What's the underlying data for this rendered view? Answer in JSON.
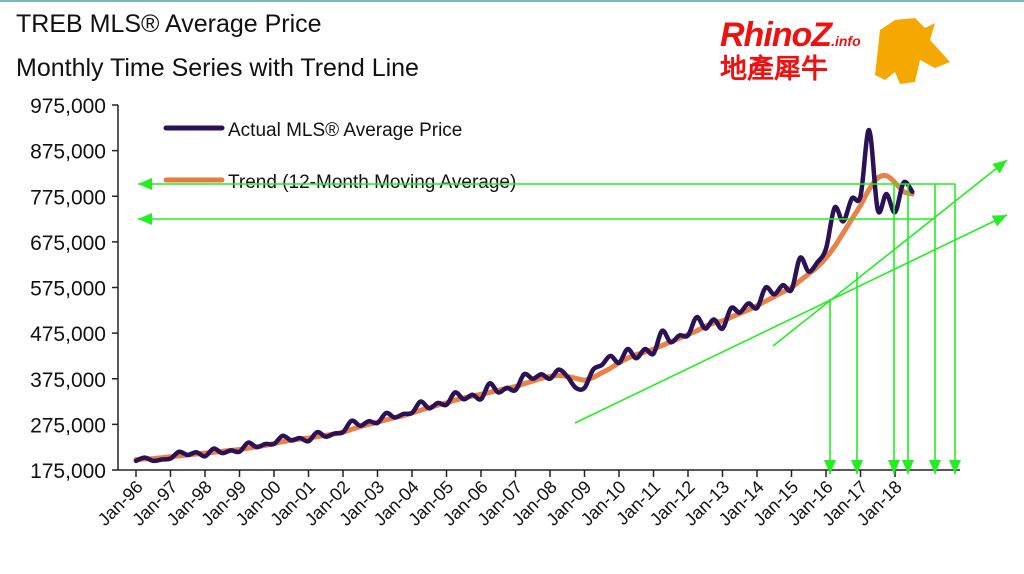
{
  "chart_data": {
    "type": "line",
    "title": "TREB MLS® Average Price",
    "subtitle": "Monthly  Time Series with Trend Line",
    "xlabel": "",
    "ylabel": "",
    "ylim": [
      175000,
      975000
    ],
    "yticks": [
      "975,000",
      "875,000",
      "775,000",
      "675,000",
      "575,000",
      "475,000",
      "375,000",
      "275,000",
      "175,000"
    ],
    "ytick_values": [
      975000,
      875000,
      775000,
      675000,
      575000,
      475000,
      375000,
      275000,
      175000
    ],
    "xticks": [
      "Jan-96",
      "Jan-97",
      "Jan-98",
      "Jan-99",
      "Jan-00",
      "Jan-01",
      "Jan-02",
      "Jan-03",
      "Jan-04",
      "Jan-05",
      "Jan-06",
      "Jan-07",
      "Jan-08",
      "Jan-09",
      "Jan-10",
      "Jan-11",
      "Jan-12",
      "Jan-13",
      "Jan-14",
      "Jan-15",
      "Jan-16",
      "Jan-17",
      "Jan-18"
    ],
    "grid": false,
    "legend_position": "top-left",
    "series": [
      {
        "name": "Actual MLS® Average Price",
        "color": "#2b1155",
        "x": [
          "1996-01",
          "1996-04",
          "1996-07",
          "1996-10",
          "1997-01",
          "1997-04",
          "1997-07",
          "1997-10",
          "1998-01",
          "1998-04",
          "1998-07",
          "1998-10",
          "1999-01",
          "1999-04",
          "1999-07",
          "1999-10",
          "2000-01",
          "2000-04",
          "2000-07",
          "2000-10",
          "2001-01",
          "2001-04",
          "2001-07",
          "2001-10",
          "2002-01",
          "2002-04",
          "2002-07",
          "2002-10",
          "2003-01",
          "2003-04",
          "2003-07",
          "2003-10",
          "2004-01",
          "2004-04",
          "2004-07",
          "2004-10",
          "2005-01",
          "2005-04",
          "2005-07",
          "2005-10",
          "2006-01",
          "2006-04",
          "2006-07",
          "2006-10",
          "2007-01",
          "2007-04",
          "2007-07",
          "2007-10",
          "2008-01",
          "2008-04",
          "2008-07",
          "2008-10",
          "2009-01",
          "2009-04",
          "2009-07",
          "2009-10",
          "2010-01",
          "2010-04",
          "2010-07",
          "2010-10",
          "2011-01",
          "2011-04",
          "2011-07",
          "2011-10",
          "2012-01",
          "2012-04",
          "2012-07",
          "2012-10",
          "2013-01",
          "2013-04",
          "2013-07",
          "2013-10",
          "2014-01",
          "2014-04",
          "2014-07",
          "2014-10",
          "2015-01",
          "2015-04",
          "2015-07",
          "2015-10",
          "2016-01",
          "2016-04",
          "2016-07",
          "2016-10",
          "2017-01",
          "2017-04",
          "2017-07",
          "2017-10",
          "2018-01",
          "2018-04",
          "2018-07"
        ],
        "values": [
          195000,
          202000,
          195000,
          198000,
          200000,
          215000,
          208000,
          214000,
          205000,
          222000,
          212000,
          218000,
          215000,
          235000,
          225000,
          232000,
          232000,
          250000,
          240000,
          245000,
          238000,
          258000,
          248000,
          255000,
          258000,
          283000,
          272000,
          282000,
          278000,
          300000,
          290000,
          298000,
          300000,
          325000,
          310000,
          322000,
          318000,
          345000,
          330000,
          340000,
          330000,
          365000,
          345000,
          355000,
          350000,
          385000,
          375000,
          385000,
          375000,
          395000,
          380000,
          355000,
          355000,
          395000,
          405000,
          425000,
          410000,
          440000,
          420000,
          440000,
          430000,
          480000,
          455000,
          470000,
          470000,
          510000,
          485000,
          505000,
          485000,
          530000,
          520000,
          540000,
          530000,
          575000,
          560000,
          580000,
          570000,
          640000,
          610000,
          630000,
          660000,
          750000,
          720000,
          770000,
          775000,
          920000,
          745000,
          780000,
          740000,
          805000,
          785000
        ]
      },
      {
        "name": "Trend (12-Month Moving Average)",
        "color": "#e87a3e",
        "x": [
          "1996-01",
          "1996-04",
          "1996-07",
          "1996-10",
          "1997-01",
          "1997-04",
          "1997-07",
          "1997-10",
          "1998-01",
          "1998-04",
          "1998-07",
          "1998-10",
          "1999-01",
          "1999-04",
          "1999-07",
          "1999-10",
          "2000-01",
          "2000-04",
          "2000-07",
          "2000-10",
          "2001-01",
          "2001-04",
          "2001-07",
          "2001-10",
          "2002-01",
          "2002-04",
          "2002-07",
          "2002-10",
          "2003-01",
          "2003-04",
          "2003-07",
          "2003-10",
          "2004-01",
          "2004-04",
          "2004-07",
          "2004-10",
          "2005-01",
          "2005-04",
          "2005-07",
          "2005-10",
          "2006-01",
          "2006-04",
          "2006-07",
          "2006-10",
          "2007-01",
          "2007-04",
          "2007-07",
          "2007-10",
          "2008-01",
          "2008-04",
          "2008-07",
          "2008-10",
          "2009-01",
          "2009-04",
          "2009-07",
          "2009-10",
          "2010-01",
          "2010-04",
          "2010-07",
          "2010-10",
          "2011-01",
          "2011-04",
          "2011-07",
          "2011-10",
          "2012-01",
          "2012-04",
          "2012-07",
          "2012-10",
          "2013-01",
          "2013-04",
          "2013-07",
          "2013-10",
          "2014-01",
          "2014-04",
          "2014-07",
          "2014-10",
          "2015-01",
          "2015-04",
          "2015-07",
          "2015-10",
          "2016-01",
          "2016-04",
          "2016-07",
          "2016-10",
          "2017-01",
          "2017-04",
          "2017-07",
          "2017-10",
          "2018-01",
          "2018-04",
          "2018-07"
        ],
        "values": [
          198000,
          199000,
          200000,
          202000,
          204000,
          206000,
          208000,
          210000,
          212000,
          214000,
          216000,
          218000,
          220000,
          223000,
          226000,
          229000,
          233000,
          237000,
          240000,
          243000,
          245000,
          248000,
          251000,
          254000,
          258000,
          264000,
          270000,
          275000,
          280000,
          285000,
          290000,
          294000,
          300000,
          306000,
          312000,
          317000,
          322000,
          328000,
          333000,
          337000,
          341000,
          345000,
          350000,
          354000,
          358000,
          364000,
          370000,
          376000,
          380000,
          382000,
          380000,
          376000,
          372000,
          378000,
          388000,
          398000,
          410000,
          420000,
          428000,
          433000,
          440000,
          448000,
          456000,
          464000,
          472000,
          480000,
          490000,
          497000,
          502000,
          510000,
          518000,
          526000,
          535000,
          545000,
          555000,
          565000,
          575000,
          590000,
          605000,
          620000,
          640000,
          665000,
          695000,
          725000,
          755000,
          790000,
          815000,
          820000,
          805000,
          785000,
          780000
        ]
      }
    ]
  },
  "annotation_color": "#22ee22",
  "logo": {
    "text_en": "RhinoZ",
    "text_suffix": ".info",
    "text_zh": "地產犀牛",
    "color": "#ee1111",
    "mascot_color": "#f5a800"
  }
}
